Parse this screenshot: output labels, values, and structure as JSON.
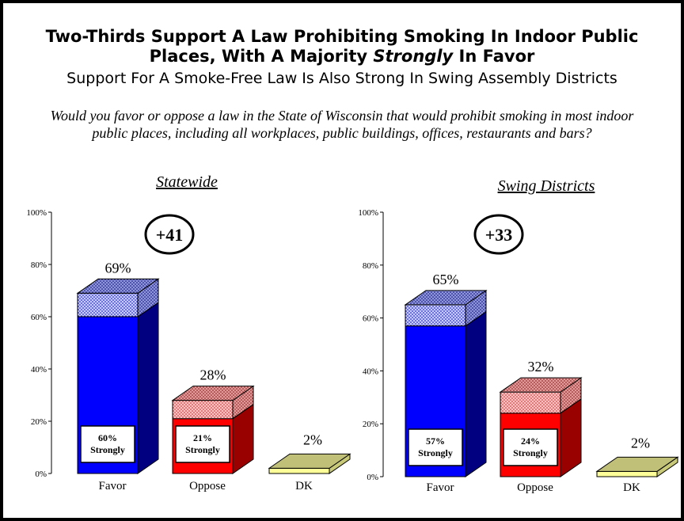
{
  "title": {
    "line1": "Two-Thirds Support A Law Prohibiting Smoking In Indoor Public",
    "line2_pre": "Places, With A Majority ",
    "line2_em": "Strongly",
    "line2_post": " In Favor"
  },
  "subtitle": "Support For A Smoke-Free Law Is Also Strong In Swing Assembly Districts",
  "question": "Would you favor or oppose a law in the State of Wisconsin that would prohibit smoking in most indoor public places, including all workplaces, public buildings, offices, restaurants and bars?",
  "colors": {
    "favor_front": "#0000ff",
    "favor_side": "#000080",
    "favor_top": "#000099",
    "favor_dotted": "#c8cdf2",
    "oppose_front": "#ff0000",
    "oppose_side": "#990000",
    "oppose_dotted": "#f5c3c3",
    "dk_front": "#ffff99",
    "dk_side": "#c9c97a",
    "dk_top": "#c0c078"
  },
  "chart_data": [
    {
      "type": "bar",
      "title": "Statewide",
      "categories": [
        "Favor",
        "Oppose",
        "DK"
      ],
      "values": [
        69,
        28,
        2
      ],
      "value_labels": [
        "69%",
        "28%",
        "2%"
      ],
      "strongly": [
        60,
        21,
        null
      ],
      "strongly_labels": [
        "60%\nStrongly",
        "21%\nStrongly",
        ""
      ],
      "margin_label": "+41",
      "yticks": [
        "0%",
        "20%",
        "40%",
        "60%",
        "80%",
        "100%"
      ],
      "ylim": [
        0,
        100
      ]
    },
    {
      "type": "bar",
      "title": "Swing Districts",
      "categories": [
        "Favor",
        "Oppose",
        "DK"
      ],
      "values": [
        65,
        32,
        2
      ],
      "value_labels": [
        "65%",
        "32%",
        "2%"
      ],
      "strongly": [
        57,
        24,
        null
      ],
      "strongly_labels": [
        "57%\nStrongly",
        "24%\nStrongly",
        ""
      ],
      "margin_label": "+33",
      "yticks": [
        "0%",
        "20%",
        "40%",
        "60%",
        "80%",
        "100%"
      ],
      "ylim": [
        0,
        100
      ]
    }
  ]
}
